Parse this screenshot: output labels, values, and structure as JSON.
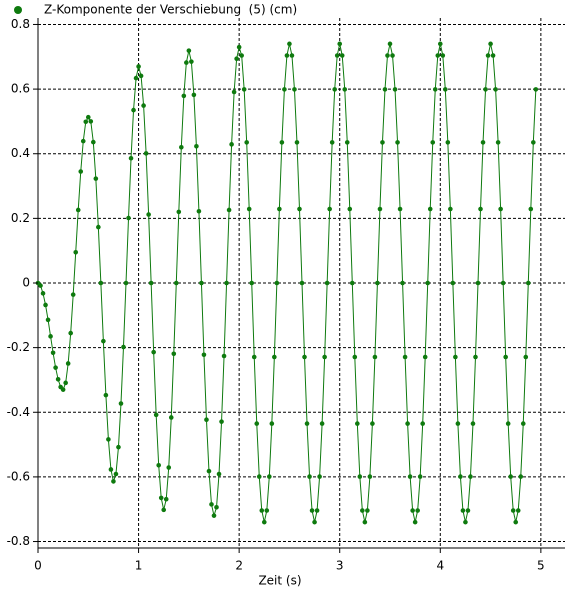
{
  "chart_data": {
    "type": "line",
    "xlabel": "Zeit (s)",
    "xlim": [
      0,
      5.24
    ],
    "xticks": [
      0,
      1,
      2,
      3,
      4,
      5
    ],
    "ylim": [
      -0.82,
      0.82
    ],
    "yticks": [
      -0.8,
      -0.6,
      -0.4,
      -0.2,
      0,
      0.2,
      0.4,
      0.6,
      0.8
    ],
    "grid": true,
    "legend": "top-left",
    "x": [
      0,
      0.025,
      0.05,
      0.075,
      0.1,
      0.125,
      0.15,
      0.175,
      0.2,
      0.225,
      0.25,
      0.275,
      0.3,
      0.325,
      0.35,
      0.375,
      0.4,
      0.425,
      0.45,
      0.475,
      0.5,
      0.525,
      0.55,
      0.575,
      0.6,
      0.625,
      0.65,
      0.675,
      0.7,
      0.725,
      0.75,
      0.775,
      0.8,
      0.825,
      0.85,
      0.875,
      0.9,
      0.925,
      0.95,
      0.975,
      1,
      1.025,
      1.05,
      1.075,
      1.1,
      1.125,
      1.15,
      1.175,
      1.2,
      1.225,
      1.25,
      1.275,
      1.3,
      1.325,
      1.35,
      1.375,
      1.4,
      1.425,
      1.45,
      1.475,
      1.5,
      1.525,
      1.55,
      1.575,
      1.6,
      1.625,
      1.65,
      1.675,
      1.7,
      1.725,
      1.75,
      1.775,
      1.8,
      1.825,
      1.85,
      1.875,
      1.9,
      1.925,
      1.95,
      1.975,
      2,
      2.025,
      2.05,
      2.075,
      2.1,
      2.125,
      2.15,
      2.175,
      2.2,
      2.225,
      2.25,
      2.275,
      2.3,
      2.325,
      2.35,
      2.375,
      2.4,
      2.425,
      2.45,
      2.475,
      2.5,
      2.525,
      2.55,
      2.575,
      2.6,
      2.625,
      2.65,
      2.675,
      2.7,
      2.725,
      2.75,
      2.775,
      2.8,
      2.825,
      2.85,
      2.875,
      2.9,
      2.925,
      2.95,
      2.975,
      3,
      3.025,
      3.05,
      3.075,
      3.1,
      3.125,
      3.15,
      3.175,
      3.2,
      3.225,
      3.25,
      3.275,
      3.3,
      3.325,
      3.35,
      3.375,
      3.4,
      3.425,
      3.45,
      3.475,
      3.5,
      3.525,
      3.55,
      3.575,
      3.6,
      3.625,
      3.65,
      3.675,
      3.7,
      3.725,
      3.75,
      3.775,
      3.8,
      3.825,
      3.85,
      3.875,
      3.9,
      3.925,
      3.95,
      3.975,
      4,
      4.025,
      4.05,
      4.075,
      4.1,
      4.125,
      4.15,
      4.175,
      4.2,
      4.225,
      4.25,
      4.275,
      4.3,
      4.325,
      4.35,
      4.375,
      4.4,
      4.425,
      4.45,
      4.475,
      4.5,
      4.525,
      4.55,
      4.575,
      4.6,
      4.625,
      4.65,
      4.675,
      4.7,
      4.725,
      4.75,
      4.775,
      4.8,
      4.825,
      4.85,
      4.875,
      4.9,
      4.925,
      4.95
    ],
    "series": [
      {
        "name": "Z-Komponente der Verschiebung  (5) (cm)",
        "color": "#0e7a0e",
        "values": [
          0,
          -0.008,
          -0.032,
          -0.068,
          -0.114,
          -0.165,
          -0.216,
          -0.262,
          -0.298,
          -0.322,
          -0.33,
          -0.309,
          -0.249,
          -0.155,
          -0.036,
          0.095,
          0.226,
          0.345,
          0.439,
          0.499,
          0.513,
          0.5,
          0.436,
          0.323,
          0.173,
          0,
          -0.18,
          -0.347,
          -0.484,
          -0.577,
          -0.614,
          -0.591,
          -0.508,
          -0.373,
          -0.198,
          0,
          0.201,
          0.386,
          0.535,
          0.634,
          0.67,
          0.641,
          0.549,
          0.401,
          0.212,
          0,
          -0.214,
          -0.408,
          -0.564,
          -0.665,
          -0.702,
          -0.669,
          -0.571,
          -0.416,
          -0.219,
          0,
          0.22,
          0.42,
          0.579,
          0.682,
          0.719,
          0.685,
          0.582,
          0.423,
          0.222,
          0,
          -0.222,
          -0.423,
          -0.582,
          -0.685,
          -0.72,
          -0.694,
          -0.591,
          -0.429,
          -0.226,
          0,
          0.226,
          0.429,
          0.591,
          0.694,
          0.73,
          0.704,
          0.599,
          0.435,
          0.229,
          0,
          -0.229,
          -0.435,
          -0.599,
          -0.704,
          -0.74,
          -0.704,
          -0.599,
          -0.435,
          -0.229,
          0,
          0.229,
          0.435,
          0.599,
          0.704,
          0.74,
          0.704,
          0.599,
          0.435,
          0.229,
          0,
          -0.229,
          -0.435,
          -0.599,
          -0.704,
          -0.74,
          -0.704,
          -0.599,
          -0.435,
          -0.229,
          0,
          0.229,
          0.435,
          0.599,
          0.704,
          0.74,
          0.704,
          0.599,
          0.435,
          0.229,
          0,
          -0.229,
          -0.435,
          -0.599,
          -0.704,
          -0.74,
          -0.704,
          -0.599,
          -0.435,
          -0.229,
          0,
          0.229,
          0.435,
          0.599,
          0.704,
          0.74,
          0.704,
          0.599,
          0.435,
          0.229,
          0,
          -0.229,
          -0.435,
          -0.599,
          -0.704,
          -0.74,
          -0.704,
          -0.599,
          -0.435,
          -0.229,
          0,
          0.229,
          0.435,
          0.599,
          0.704,
          0.74,
          0.704,
          0.599,
          0.435,
          0.229,
          0,
          -0.229,
          -0.435,
          -0.599,
          -0.704,
          -0.74,
          -0.704,
          -0.599,
          -0.435,
          -0.229,
          0,
          0.229,
          0.435,
          0.599,
          0.704,
          0.74,
          0.704,
          0.599,
          0.435,
          0.229,
          0,
          -0.229,
          -0.435,
          -0.599,
          -0.704,
          -0.74,
          -0.704,
          -0.599,
          -0.435,
          -0.229,
          0,
          0.229,
          0.435,
          0.599
        ]
      }
    ]
  }
}
